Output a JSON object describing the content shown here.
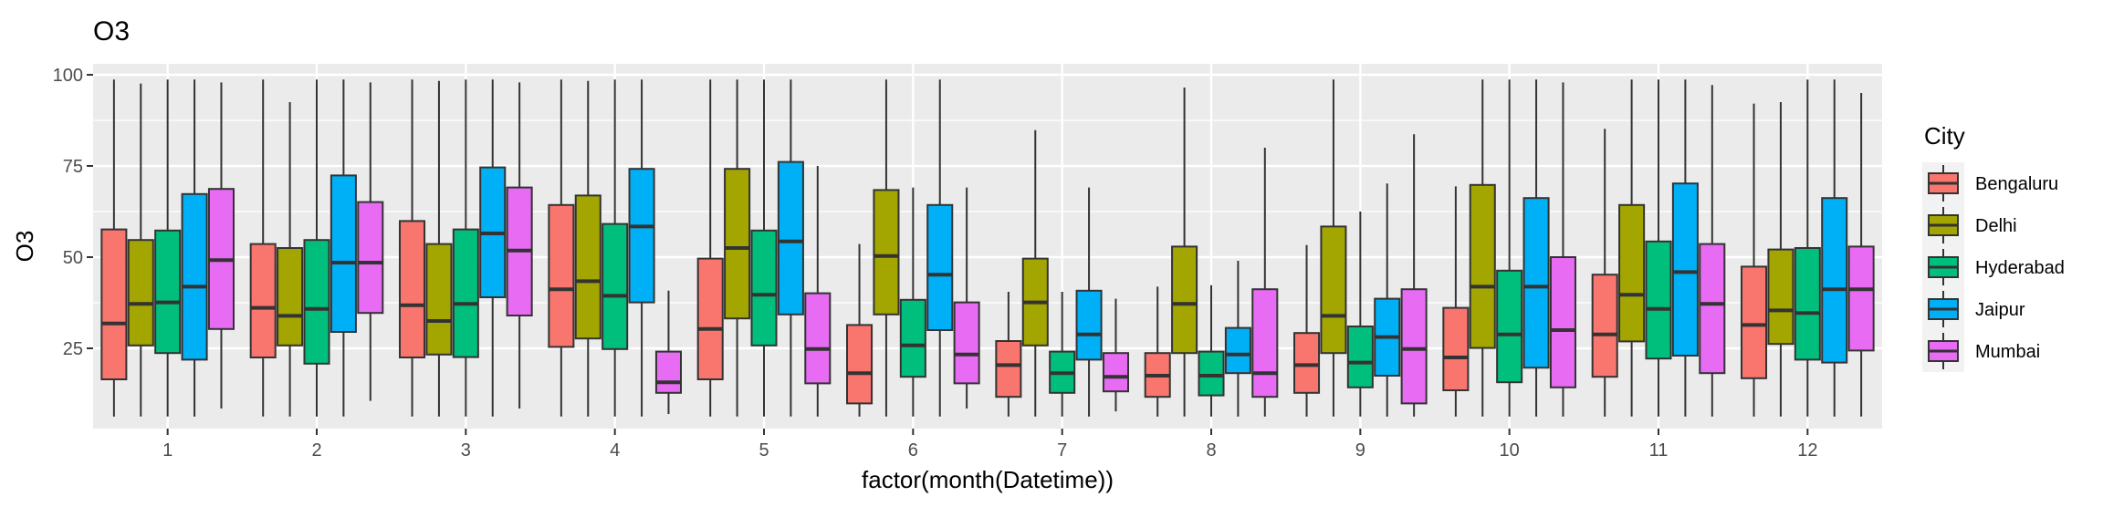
{
  "chart_data": {
    "type": "boxplot",
    "title": "O3",
    "xlabel": "factor(month(Datetime))",
    "ylabel": "O3",
    "categories": [
      "1",
      "2",
      "3",
      "4",
      "5",
      "6",
      "7",
      "8",
      "9",
      "10",
      "11",
      "12"
    ],
    "yticks": [
      25,
      50,
      75,
      100
    ],
    "ylim": [
      3,
      103
    ],
    "grid": true,
    "legend": {
      "title": "City",
      "position": "right"
    },
    "series": [
      {
        "name": "Bengaluru",
        "color": "#F8766D",
        "boxes": [
          {
            "min": 6.3,
            "q1": 16.5,
            "median": 31.8,
            "q3": 57.6,
            "max": 98.7
          },
          {
            "min": 6.3,
            "q1": 22.5,
            "median": 36.1,
            "q3": 53.6,
            "max": 98.7
          },
          {
            "min": 6.3,
            "q1": 22.5,
            "median": 36.8,
            "q3": 59.9,
            "max": 98.7
          },
          {
            "min": 6.3,
            "q1": 25.4,
            "median": 41.2,
            "q3": 64.3,
            "max": 98.7
          },
          {
            "min": 6.3,
            "q1": 16.5,
            "median": 30.3,
            "q3": 49.6,
            "max": 98.7
          },
          {
            "min": 6.3,
            "q1": 9.9,
            "median": 18.2,
            "q3": 31.4,
            "max": 53.6
          },
          {
            "min": 6.3,
            "q1": 11.7,
            "median": 20.4,
            "q3": 27.0,
            "max": 40.5
          },
          {
            "min": 6.3,
            "q1": 11.7,
            "median": 17.5,
            "q3": 23.7,
            "max": 41.9
          },
          {
            "min": 6.3,
            "q1": 12.8,
            "median": 20.4,
            "q3": 29.2,
            "max": 53.3
          },
          {
            "min": 6.3,
            "q1": 13.5,
            "median": 22.5,
            "q3": 36.1,
            "max": 69.4
          },
          {
            "min": 6.3,
            "q1": 17.2,
            "median": 28.8,
            "q3": 45.2,
            "max": 85.2
          },
          {
            "min": 6.3,
            "q1": 16.8,
            "median": 31.4,
            "q3": 47.4,
            "max": 92.1
          }
        ]
      },
      {
        "name": "Delhi",
        "color": "#A3A500",
        "boxes": [
          {
            "min": 6.3,
            "q1": 25.8,
            "median": 37.2,
            "q3": 54.7,
            "max": 97.6
          },
          {
            "min": 6.3,
            "q1": 25.8,
            "median": 33.9,
            "q3": 52.5,
            "max": 92.5
          },
          {
            "min": 6.3,
            "q1": 23.3,
            "median": 32.5,
            "q3": 53.6,
            "max": 98.3
          },
          {
            "min": 6.3,
            "q1": 27.7,
            "median": 43.4,
            "q3": 66.9,
            "max": 98.3
          },
          {
            "min": 6.3,
            "q1": 33.2,
            "median": 52.5,
            "q3": 74.2,
            "max": 98.7
          },
          {
            "min": 6.3,
            "q1": 34.3,
            "median": 50.3,
            "q3": 68.4,
            "max": 98.7
          },
          {
            "min": 6.3,
            "q1": 25.8,
            "median": 37.6,
            "q3": 49.6,
            "max": 84.8
          },
          {
            "min": 6.3,
            "q1": 23.7,
            "median": 37.2,
            "q3": 52.9,
            "max": 96.5
          },
          {
            "min": 6.3,
            "q1": 23.7,
            "median": 33.9,
            "q3": 58.4,
            "max": 98.7
          },
          {
            "min": 6.3,
            "q1": 25.1,
            "median": 41.9,
            "q3": 69.8,
            "max": 98.7
          },
          {
            "min": 6.3,
            "q1": 26.9,
            "median": 39.7,
            "q3": 64.3,
            "max": 98.7
          },
          {
            "min": 6.3,
            "q1": 26.2,
            "median": 35.4,
            "q3": 52.1,
            "max": 92.5
          }
        ]
      },
      {
        "name": "Hyderabad",
        "color": "#00BF7D",
        "boxes": [
          {
            "min": 6.3,
            "q1": 23.7,
            "median": 37.6,
            "q3": 57.3,
            "max": 98.7
          },
          {
            "min": 6.3,
            "q1": 20.8,
            "median": 35.8,
            "q3": 54.7,
            "max": 98.7
          },
          {
            "min": 6.3,
            "q1": 22.6,
            "median": 37.2,
            "q3": 57.6,
            "max": 98.7
          },
          {
            "min": 6.3,
            "q1": 24.8,
            "median": 39.4,
            "q3": 59.1,
            "max": 98.7
          },
          {
            "min": 6.3,
            "q1": 25.8,
            "median": 39.7,
            "q3": 57.3,
            "max": 98.7
          },
          {
            "min": 6.3,
            "q1": 17.2,
            "median": 25.8,
            "q3": 38.3,
            "max": 69.1
          },
          {
            "min": 6.3,
            "q1": 12.8,
            "median": 18.2,
            "q3": 24.1,
            "max": 40.5
          },
          {
            "min": 6.3,
            "q1": 12.1,
            "median": 17.5,
            "q3": 24.1,
            "max": 42.3
          },
          {
            "min": 6.3,
            "q1": 14.3,
            "median": 21.1,
            "q3": 31.0,
            "max": 62.5
          },
          {
            "min": 6.3,
            "q1": 15.7,
            "median": 28.8,
            "q3": 46.3,
            "max": 98.7
          },
          {
            "min": 6.3,
            "q1": 22.2,
            "median": 35.8,
            "q3": 54.3,
            "max": 98.7
          },
          {
            "min": 6.3,
            "q1": 21.9,
            "median": 34.7,
            "q3": 52.5,
            "max": 98.7
          }
        ]
      },
      {
        "name": "Jaipur",
        "color": "#00B0F6",
        "boxes": [
          {
            "min": 6.3,
            "q1": 21.9,
            "median": 41.9,
            "q3": 67.3,
            "max": 98.7
          },
          {
            "min": 6.3,
            "q1": 29.5,
            "median": 48.5,
            "q3": 72.4,
            "max": 98.7
          },
          {
            "min": 6.3,
            "q1": 39.0,
            "median": 56.5,
            "q3": 74.6,
            "max": 98.7
          },
          {
            "min": 6.3,
            "q1": 37.6,
            "median": 58.4,
            "q3": 74.2,
            "max": 98.7
          },
          {
            "min": 6.3,
            "q1": 34.3,
            "median": 54.3,
            "q3": 76.1,
            "max": 98.7
          },
          {
            "min": 6.3,
            "q1": 30.0,
            "median": 45.2,
            "q3": 64.3,
            "max": 98.7
          },
          {
            "min": 6.3,
            "q1": 21.9,
            "median": 28.8,
            "q3": 40.8,
            "max": 69.1
          },
          {
            "min": 6.3,
            "q1": 18.2,
            "median": 23.3,
            "q3": 30.6,
            "max": 49.0
          },
          {
            "min": 6.3,
            "q1": 17.5,
            "median": 28.1,
            "q3": 38.6,
            "max": 70.2
          },
          {
            "min": 6.3,
            "q1": 19.7,
            "median": 41.9,
            "q3": 66.2,
            "max": 98.7
          },
          {
            "min": 6.3,
            "q1": 23.0,
            "median": 45.9,
            "q3": 70.2,
            "max": 98.7
          },
          {
            "min": 6.3,
            "q1": 21.1,
            "median": 41.2,
            "q3": 66.2,
            "max": 98.7
          }
        ]
      },
      {
        "name": "Mumbai",
        "color": "#E76BF3",
        "boxes": [
          {
            "min": 8.5,
            "q1": 30.3,
            "median": 49.2,
            "q3": 68.7,
            "max": 97.9
          },
          {
            "min": 10.6,
            "q1": 34.7,
            "median": 48.5,
            "q3": 65.1,
            "max": 97.9
          },
          {
            "min": 8.5,
            "q1": 34.0,
            "median": 51.8,
            "q3": 69.1,
            "max": 97.9
          },
          {
            "min": 7.0,
            "q1": 12.8,
            "median": 15.7,
            "q3": 24.1,
            "max": 40.8
          },
          {
            "min": 6.3,
            "q1": 15.4,
            "median": 24.8,
            "q3": 40.1,
            "max": 75.0
          },
          {
            "min": 8.5,
            "q1": 15.4,
            "median": 23.3,
            "q3": 37.6,
            "max": 69.1
          },
          {
            "min": 7.7,
            "q1": 13.2,
            "median": 17.2,
            "q3": 23.7,
            "max": 38.6
          },
          {
            "min": 6.3,
            "q1": 11.7,
            "median": 18.2,
            "q3": 41.2,
            "max": 80.0
          },
          {
            "min": 6.3,
            "q1": 9.9,
            "median": 24.8,
            "q3": 41.2,
            "max": 83.7
          },
          {
            "min": 6.3,
            "q1": 14.3,
            "median": 30.0,
            "q3": 50.0,
            "max": 97.9
          },
          {
            "min": 6.3,
            "q1": 18.2,
            "median": 37.2,
            "q3": 53.6,
            "max": 97.2
          },
          {
            "min": 6.3,
            "q1": 24.4,
            "median": 41.2,
            "q3": 52.9,
            "max": 95.0
          }
        ]
      }
    ]
  }
}
